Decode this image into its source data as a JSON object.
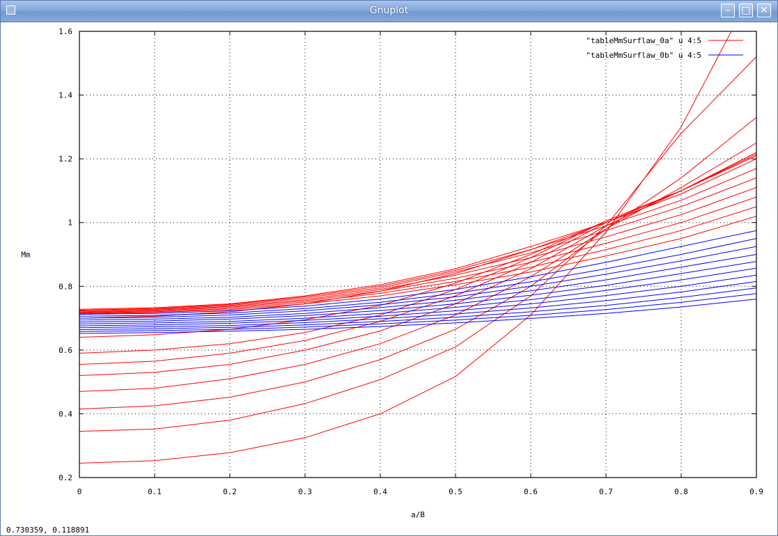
{
  "window": {
    "title": "Gnuplot",
    "buttons": {
      "minimize": "–",
      "maximize": "□",
      "close": "✕"
    }
  },
  "status_bar": {
    "coords": "0.730359,  0.118891"
  },
  "colors": {
    "series_a": "#ff0000",
    "series_b": "#0000ff",
    "grid": "#000000",
    "title_bar": "#7fa4d8"
  },
  "chart_data": {
    "type": "line",
    "xlabel": "a/B",
    "ylabel": "Mm",
    "xlim": [
      0,
      0.9
    ],
    "ylim": [
      0.2,
      1.6
    ],
    "xticks": [
      "0",
      "0.1",
      "0.2",
      "0.3",
      "0.4",
      "0.5",
      "0.6",
      "0.7",
      "0.8",
      "0.9"
    ],
    "yticks": [
      "0.2",
      "0.4",
      "0.6",
      "0.8",
      "1",
      "1.2",
      "1.4",
      "1.6"
    ],
    "grid": true,
    "legend_position": "top-right",
    "legend": [
      "\"tableMmSurflaw_0a\" u 4:5",
      "\"tableMmSurflaw_0b\" u 4:5"
    ],
    "x": [
      0,
      0.1,
      0.2,
      0.3,
      0.4,
      0.5,
      0.6,
      0.7,
      0.8,
      0.9
    ],
    "series": [
      {
        "name": "\"tableMmSurflaw_0a\" u 4:5",
        "color": "#ff0000",
        "curves": [
          [
            0.245,
            0.253,
            0.278,
            0.325,
            0.4,
            0.517,
            0.71,
            0.97,
            1.3,
            1.75
          ],
          [
            0.345,
            0.352,
            0.38,
            0.432,
            0.507,
            0.61,
            0.77,
            0.99,
            1.28,
            1.52
          ],
          [
            0.415,
            0.425,
            0.452,
            0.5,
            0.57,
            0.665,
            0.8,
            0.98,
            1.14,
            1.33
          ],
          [
            0.47,
            0.48,
            0.51,
            0.555,
            0.62,
            0.71,
            0.83,
            0.98,
            1.11,
            1.25
          ],
          [
            0.52,
            0.53,
            0.555,
            0.6,
            0.66,
            0.745,
            0.855,
            0.99,
            1.1,
            1.22
          ],
          [
            0.555,
            0.565,
            0.59,
            0.63,
            0.69,
            0.77,
            0.875,
            1.0,
            1.1,
            1.22
          ],
          [
            0.59,
            0.6,
            0.62,
            0.655,
            0.71,
            0.79,
            0.89,
            1.005,
            1.1,
            1.215
          ],
          [
            0.64,
            0.648,
            0.665,
            0.695,
            0.74,
            0.81,
            0.9,
            1.005,
            1.1,
            1.21
          ],
          [
            0.7,
            0.706,
            0.72,
            0.745,
            0.785,
            0.84,
            0.915,
            1.0,
            1.1,
            1.21
          ],
          [
            0.728,
            0.733,
            0.745,
            0.77,
            0.805,
            0.855,
            0.925,
            1.0,
            1.09,
            1.2
          ],
          [
            0.725,
            0.73,
            0.743,
            0.767,
            0.8,
            0.85,
            0.915,
            0.99,
            1.07,
            1.17
          ],
          [
            0.723,
            0.728,
            0.74,
            0.763,
            0.795,
            0.845,
            0.905,
            0.975,
            1.05,
            1.14
          ],
          [
            0.72,
            0.725,
            0.737,
            0.758,
            0.79,
            0.835,
            0.89,
            0.955,
            1.025,
            1.11
          ],
          [
            0.718,
            0.723,
            0.734,
            0.754,
            0.785,
            0.825,
            0.875,
            0.935,
            1.0,
            1.08
          ],
          [
            0.716,
            0.72,
            0.73,
            0.75,
            0.778,
            0.815,
            0.86,
            0.915,
            0.975,
            1.05
          ],
          [
            0.714,
            0.718,
            0.727,
            0.745,
            0.77,
            0.805,
            0.845,
            0.895,
            0.95,
            1.02
          ]
        ]
      },
      {
        "name": "\"tableMmSurflaw_0b\" u 4:5",
        "color": "#0000ff",
        "curves": [
          [
            0.712,
            0.715,
            0.723,
            0.738,
            0.76,
            0.79,
            0.83,
            0.875,
            0.925,
            0.975
          ],
          [
            0.706,
            0.709,
            0.716,
            0.73,
            0.75,
            0.778,
            0.814,
            0.855,
            0.9,
            0.95
          ],
          [
            0.7,
            0.703,
            0.71,
            0.723,
            0.742,
            0.767,
            0.8,
            0.838,
            0.88,
            0.925
          ],
          [
            0.694,
            0.697,
            0.703,
            0.715,
            0.733,
            0.756,
            0.786,
            0.82,
            0.86,
            0.9
          ],
          [
            0.688,
            0.691,
            0.697,
            0.708,
            0.724,
            0.745,
            0.772,
            0.803,
            0.84,
            0.878
          ],
          [
            0.682,
            0.685,
            0.69,
            0.7,
            0.715,
            0.734,
            0.758,
            0.787,
            0.82,
            0.857
          ],
          [
            0.676,
            0.679,
            0.684,
            0.693,
            0.706,
            0.723,
            0.745,
            0.771,
            0.8,
            0.835
          ],
          [
            0.67,
            0.673,
            0.677,
            0.686,
            0.698,
            0.713,
            0.732,
            0.755,
            0.782,
            0.815
          ],
          [
            0.664,
            0.667,
            0.671,
            0.679,
            0.69,
            0.703,
            0.72,
            0.74,
            0.765,
            0.795
          ],
          [
            0.658,
            0.661,
            0.665,
            0.672,
            0.682,
            0.694,
            0.709,
            0.727,
            0.75,
            0.777
          ],
          [
            0.652,
            0.655,
            0.659,
            0.665,
            0.674,
            0.685,
            0.699,
            0.715,
            0.735,
            0.76
          ]
        ]
      }
    ]
  }
}
